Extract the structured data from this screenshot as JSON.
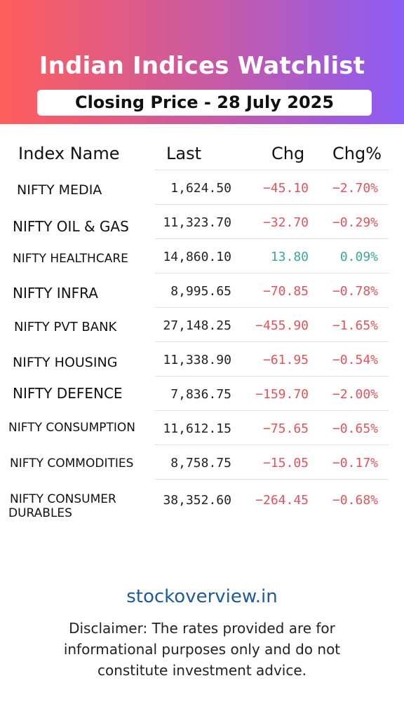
{
  "header": {
    "title": "Indian Indices Watchlist",
    "subtitle": "Closing Price - 28 July 2025",
    "gradient_colors": [
      "#ff5e5b",
      "#c55aa8",
      "#8b5cf6"
    ]
  },
  "table": {
    "columns": [
      "Index Name",
      "Last",
      "Chg",
      "Chg%"
    ],
    "rows": [
      {
        "name": "NIFTY MEDIA",
        "last": "1,624.50",
        "chg": "−45.10",
        "pct": "−2.70%",
        "direction": "down"
      },
      {
        "name": "NIFTY OIL & GAS",
        "last": "11,323.70",
        "chg": "−32.70",
        "pct": "−0.29%",
        "direction": "down"
      },
      {
        "name": "NIFTY HEALTHCARE",
        "last": "14,860.10",
        "chg": "13.80",
        "pct": "0.09%",
        "direction": "up"
      },
      {
        "name": "NIFTY INFRA",
        "last": "8,995.65",
        "chg": "−70.85",
        "pct": "−0.78%",
        "direction": "down"
      },
      {
        "name": "NIFTY PVT BANK",
        "last": "27,148.25",
        "chg": "−455.90",
        "pct": "−1.65%",
        "direction": "down"
      },
      {
        "name": "NIFTY HOUSING",
        "last": "11,338.90",
        "chg": "−61.95",
        "pct": "−0.54%",
        "direction": "down"
      },
      {
        "name": "NIFTY DEFENCE",
        "last": "7,836.75",
        "chg": "−159.70",
        "pct": "−2.00%",
        "direction": "down"
      },
      {
        "name": "NIFTY CONSUMPTION",
        "last": "11,612.15",
        "chg": "−75.65",
        "pct": "−0.65%",
        "direction": "down"
      },
      {
        "name": "NIFTY COMMODITIES",
        "last": "8,758.75",
        "chg": "−15.05",
        "pct": "−0.17%",
        "direction": "down"
      },
      {
        "name_line1": "NIFTY CONSUMER",
        "name_line2": "DURABLES",
        "last": "38,352.60",
        "chg": "−264.45",
        "pct": "−0.68%",
        "direction": "down"
      }
    ],
    "colors": {
      "negative": "#e2545b",
      "positive": "#3aa89a"
    }
  },
  "footer": {
    "site": "stockoverview.in",
    "disclaimer_lines": [
      "Disclaimer: The rates provided are for",
      "informational purposes only and do not",
      "constitute investment advice."
    ]
  }
}
